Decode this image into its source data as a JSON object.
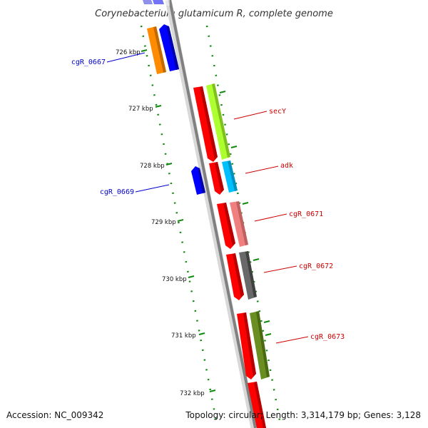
{
  "title": "Corynebacterium glutamicum R, complete genome",
  "footer": {
    "accession": "Accession: NC_009342",
    "summary": "Topology: circular; Length: 3,314,179 bp; Genes: 3,128"
  },
  "colors": {
    "backbone": "#808080",
    "reverse_cds": "#ff0000",
    "blast_hits": [
      "#ff8c00",
      "#0000ff",
      "#adff2f",
      "#00bfff",
      "#f08080",
      "#696969",
      "#6b8e23"
    ]
  },
  "ticks": [
    {
      "label": "726 kbp"
    },
    {
      "label": "727 kbp"
    },
    {
      "label": "728 kbp"
    },
    {
      "label": "729 kbp"
    },
    {
      "label": "730 kbp"
    },
    {
      "label": "731 kbp"
    },
    {
      "label": "732 kbp"
    }
  ],
  "genes": [
    {
      "label": "cgR_0667",
      "color": "blue"
    },
    {
      "label": "secY",
      "color": "red"
    },
    {
      "label": "adk",
      "color": "red"
    },
    {
      "label": "cgR_0669",
      "color": "blue"
    },
    {
      "label": "cgR_0671",
      "color": "red"
    },
    {
      "label": "cgR_0672",
      "color": "red"
    },
    {
      "label": "cgR_0673",
      "color": "red"
    }
  ]
}
